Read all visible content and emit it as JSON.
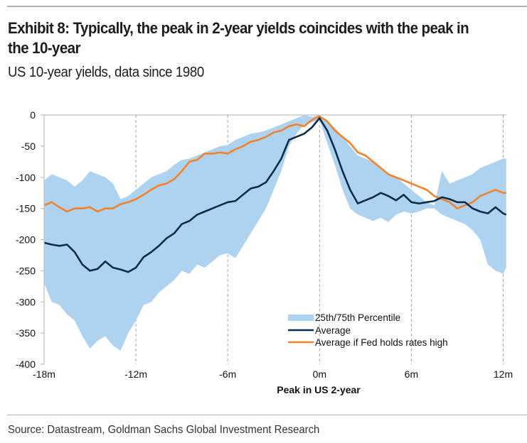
{
  "header": {
    "title": "Exhibit 8: Typically, the peak in 2-year yields coincides with the peak in the 10-year",
    "subtitle": "US 10-year yields, data since 1980"
  },
  "footer": {
    "source": "Source: Datastream, Goldman Sachs Global Investment Research"
  },
  "colors": {
    "band": "#aed3f0",
    "average": "#0c2c4e",
    "fed_high": "#f5822a",
    "axis": "#bfbfbf",
    "grid": "#a6a6a6"
  },
  "chart_data": {
    "type": "area",
    "title": "Exhibit 8: Typically, the peak in 2-year yields coincides with the peak in the 10-year",
    "subtitle": "US 10-year yields, data since 1980",
    "xlabel": "Peak in US 2-year",
    "ylabel": "",
    "xlim": [
      -18,
      12.2
    ],
    "ylim": [
      -400,
      0
    ],
    "x_ticks": [
      -18,
      -12,
      -6,
      0,
      6,
      12
    ],
    "x_tick_labels": [
      "-18m",
      "-12m",
      "-6m",
      "0m",
      "6m",
      "12m"
    ],
    "y_ticks": [
      0,
      -50,
      -100,
      -150,
      -200,
      -250,
      -300,
      -350,
      -400
    ],
    "y_tick_labels": [
      "0",
      "-50",
      "-100",
      "-150",
      "-200",
      "-250",
      "-300",
      "-350",
      "-400"
    ],
    "vertical_gridlines": "dashed at x ticks",
    "legend": {
      "position": "bottom-center",
      "entries": [
        "25th/75th Percentile",
        "Average",
        "Average if Fed holds rates high"
      ]
    },
    "x": [
      -18,
      -17.5,
      -17,
      -16.5,
      -16,
      -15.5,
      -15,
      -14.5,
      -14,
      -13.5,
      -13,
      -12.5,
      -12,
      -11.5,
      -11,
      -10.5,
      -10,
      -9.5,
      -9,
      -8.5,
      -8,
      -7.5,
      -7,
      -6.5,
      -6,
      -5.5,
      -5,
      -4.5,
      -4,
      -3.5,
      -3,
      -2.5,
      -2,
      -1.5,
      -1,
      -0.5,
      0,
      0.5,
      1,
      1.5,
      2,
      2.5,
      3,
      3.5,
      4,
      4.5,
      5,
      5.5,
      6,
      6.5,
      7,
      7.5,
      8,
      8.5,
      9,
      9.5,
      10,
      10.5,
      11,
      11.5,
      12,
      12.2
    ],
    "series": [
      {
        "name": "25th Percentile (lower band)",
        "values": [
          -270,
          -300,
          -305,
          -320,
          -330,
          -355,
          -375,
          -362,
          -355,
          -370,
          -378,
          -350,
          -330,
          -305,
          -300,
          -285,
          -275,
          -265,
          -250,
          -255,
          -240,
          -245,
          -235,
          -225,
          -222,
          -230,
          -210,
          -190,
          -170,
          -150,
          -120,
          -90,
          -50,
          -30,
          -15,
          -12,
          -8,
          -45,
          -80,
          -120,
          -150,
          -160,
          -165,
          -170,
          -165,
          -172,
          -160,
          -155,
          -158,
          -155,
          -150,
          -150,
          -160,
          -165,
          -170,
          -175,
          -185,
          -200,
          -240,
          -250,
          -255,
          -245
        ]
      },
      {
        "name": "75th Percentile (upper band)",
        "values": [
          -105,
          -95,
          -100,
          -105,
          -115,
          -105,
          -90,
          -95,
          -100,
          -110,
          -135,
          -130,
          -120,
          -110,
          -100,
          -95,
          -90,
          -80,
          -72,
          -70,
          -65,
          -60,
          -55,
          -50,
          -48,
          -40,
          -35,
          -30,
          -28,
          -25,
          -20,
          -15,
          -10,
          -5,
          0,
          -3,
          0,
          -10,
          -20,
          -35,
          -50,
          -65,
          -70,
          -75,
          -85,
          -95,
          -100,
          -110,
          -120,
          -130,
          -140,
          -145,
          -90,
          -110,
          -105,
          -100,
          -95,
          -85,
          -80,
          -75,
          -70,
          -70
        ]
      },
      {
        "name": "Average",
        "values": [
          -205,
          -208,
          -210,
          -208,
          -220,
          -240,
          -250,
          -247,
          -235,
          -245,
          -248,
          -252,
          -245,
          -228,
          -220,
          -210,
          -198,
          -190,
          -175,
          -170,
          -160,
          -155,
          -150,
          -145,
          -140,
          -138,
          -128,
          -118,
          -115,
          -108,
          -90,
          -70,
          -40,
          -35,
          -30,
          -20,
          -5,
          -25,
          -55,
          -90,
          -120,
          -142,
          -137,
          -132,
          -125,
          -130,
          -137,
          -128,
          -140,
          -142,
          -140,
          -138,
          -132,
          -135,
          -140,
          -140,
          -150,
          -155,
          -158,
          -148,
          -158,
          -160
        ]
      },
      {
        "name": "Average if Fed holds rates high",
        "values": [
          -145,
          -140,
          -148,
          -155,
          -150,
          -150,
          -148,
          -155,
          -150,
          -150,
          -143,
          -140,
          -135,
          -128,
          -120,
          -113,
          -110,
          -103,
          -90,
          -75,
          -72,
          -62,
          -62,
          -60,
          -62,
          -55,
          -50,
          -43,
          -40,
          -35,
          -28,
          -25,
          -18,
          -15,
          -18,
          -8,
          -2,
          -10,
          -25,
          -35,
          -45,
          -60,
          -65,
          -75,
          -85,
          -95,
          -100,
          -105,
          -110,
          -115,
          -120,
          -130,
          -135,
          -140,
          -150,
          -145,
          -140,
          -130,
          -125,
          -120,
          -125,
          -125
        ]
      }
    ]
  }
}
